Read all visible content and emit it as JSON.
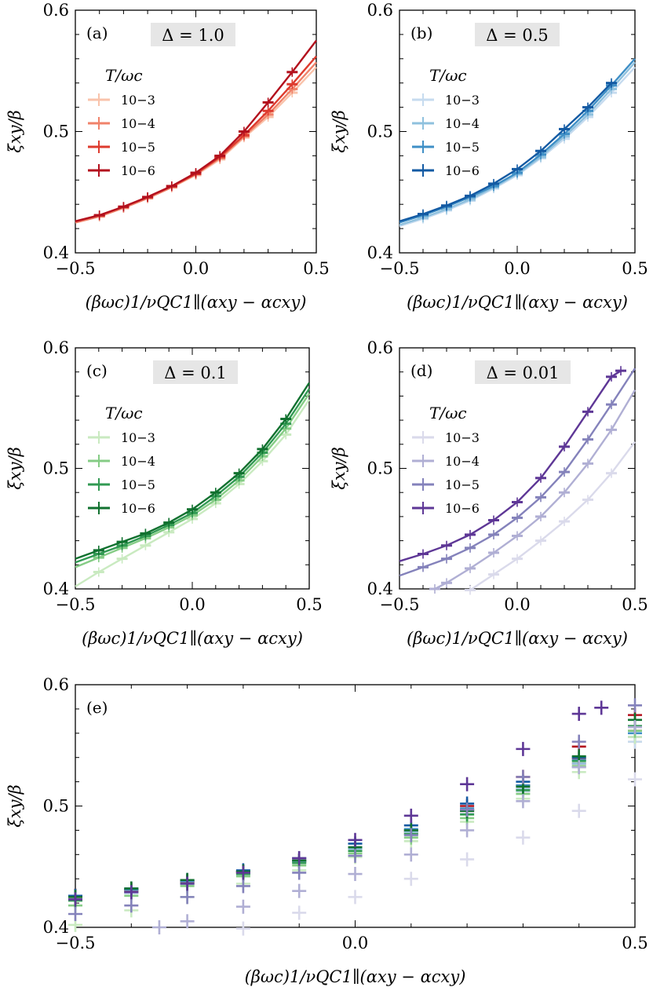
{
  "colors": {
    "a": [
      "#f9c3ab",
      "#f0826a",
      "#de3b2e",
      "#b3101d"
    ],
    "b": [
      "#c6dbef",
      "#8fc1de",
      "#3f8fc6",
      "#135aa3"
    ],
    "c": [
      "#c9eac0",
      "#85cc85",
      "#329a53",
      "#10712f"
    ],
    "d": [
      "#dadaeb",
      "#b0afd4",
      "#8482bb",
      "#5e3796"
    ]
  },
  "axes": {
    "xlabel": "(βωc)1/νQC1∥(αxy − αcxy)",
    "ylabel": "ξxy/β",
    "xticks": [
      "−0.5",
      "0.0",
      "0.5"
    ],
    "yticks": [
      "0.4",
      "0.5",
      "0.6"
    ]
  },
  "legend": {
    "title": "T/ωc",
    "entries": [
      "10−3",
      "10−4",
      "10−5",
      "10−6"
    ]
  },
  "panels": [
    {
      "label": "(a)",
      "delta": "Δ = 1.0"
    },
    {
      "label": "(b)",
      "delta": "Δ = 0.5"
    },
    {
      "label": "(c)",
      "delta": "Δ = 0.1"
    },
    {
      "label": "(d)",
      "delta": "Δ = 0.01"
    },
    {
      "label": "(e)",
      "delta": ""
    }
  ],
  "chart_data": [
    {
      "type": "line",
      "panel": "a",
      "title": "Δ = 1.0",
      "xlabel": "(βωc)^(1/νQC1∥)(αxy − αc_xy)",
      "ylabel": "ξxy/β",
      "xlim": [
        -0.5,
        0.5
      ],
      "ylim": [
        0.4,
        0.6
      ],
      "legend_title": "T/ωc",
      "series": [
        {
          "name": "10^-3",
          "x": [
            -0.5,
            -0.4,
            -0.3,
            -0.2,
            -0.1,
            0.0,
            0.1,
            0.2,
            0.3,
            0.4,
            0.5
          ],
          "y": [
            0.425,
            0.43,
            0.437,
            0.445,
            0.454,
            0.464,
            0.477,
            0.495,
            0.512,
            0.532,
            0.553
          ]
        },
        {
          "name": "10^-4",
          "x": [
            -0.5,
            -0.4,
            -0.3,
            -0.2,
            -0.1,
            0.0,
            0.1,
            0.2,
            0.3,
            0.4,
            0.5
          ],
          "y": [
            0.425,
            0.43,
            0.437,
            0.445,
            0.454,
            0.465,
            0.478,
            0.496,
            0.514,
            0.535,
            0.557
          ]
        },
        {
          "name": "10^-5",
          "x": [
            -0.5,
            -0.4,
            -0.3,
            -0.2,
            -0.1,
            0.0,
            0.1,
            0.2,
            0.3,
            0.4,
            0.5
          ],
          "y": [
            0.426,
            0.431,
            0.438,
            0.446,
            0.455,
            0.465,
            0.479,
            0.497,
            0.517,
            0.539,
            0.562
          ]
        },
        {
          "name": "10^-6",
          "x": [
            -0.5,
            -0.4,
            -0.3,
            -0.2,
            -0.1,
            0.0,
            0.1,
            0.2,
            0.3,
            0.4,
            0.5
          ],
          "y": [
            0.426,
            0.431,
            0.438,
            0.446,
            0.455,
            0.466,
            0.48,
            0.5,
            0.524,
            0.549,
            0.575
          ]
        }
      ]
    },
    {
      "type": "line",
      "panel": "b",
      "title": "Δ = 0.5",
      "xlabel": "(βωc)^(1/νQC1∥)(αxy − αc_xy)",
      "ylabel": "ξxy/β",
      "xlim": [
        -0.5,
        0.5
      ],
      "ylim": [
        0.4,
        0.6
      ],
      "legend_title": "T/ωc",
      "series": [
        {
          "name": "10^-3",
          "x": [
            -0.5,
            -0.4,
            -0.3,
            -0.2,
            -0.1,
            0.0,
            0.1,
            0.2,
            0.3,
            0.4,
            0.5
          ],
          "y": [
            0.422,
            0.428,
            0.435,
            0.443,
            0.453,
            0.464,
            0.478,
            0.494,
            0.512,
            0.532,
            0.553
          ]
        },
        {
          "name": "10^-4",
          "x": [
            -0.5,
            -0.4,
            -0.3,
            -0.2,
            -0.1,
            0.0,
            0.1,
            0.2,
            0.3,
            0.4,
            0.5
          ],
          "y": [
            0.423,
            0.429,
            0.436,
            0.444,
            0.454,
            0.465,
            0.479,
            0.496,
            0.514,
            0.535,
            0.557
          ]
        },
        {
          "name": "10^-5",
          "x": [
            -0.5,
            -0.4,
            -0.3,
            -0.2,
            -0.1,
            0.0,
            0.1,
            0.2,
            0.3,
            0.4,
            0.5
          ],
          "y": [
            0.425,
            0.431,
            0.438,
            0.446,
            0.455,
            0.466,
            0.481,
            0.498,
            0.517,
            0.538,
            0.56
          ]
        },
        {
          "name": "10^-6",
          "x": [
            -0.5,
            -0.4,
            -0.3,
            -0.2,
            -0.1,
            0.0,
            0.1,
            0.2,
            0.3,
            0.4
          ],
          "y": [
            0.426,
            0.432,
            0.439,
            0.447,
            0.457,
            0.469,
            0.484,
            0.502,
            0.52,
            0.54
          ]
        }
      ]
    },
    {
      "type": "line",
      "panel": "c",
      "title": "Δ = 0.1",
      "xlabel": "(βωc)^(1/νQC1∥)(αxy − αc_xy)",
      "ylabel": "ξxy/β",
      "xlim": [
        -0.5,
        0.5
      ],
      "ylim": [
        0.4,
        0.6
      ],
      "legend_title": "T/ωc",
      "series": [
        {
          "name": "10^-3",
          "x": [
            -0.5,
            -0.4,
            -0.3,
            -0.2,
            -0.1,
            0.0,
            0.1,
            0.2,
            0.3,
            0.4,
            0.5
          ],
          "y": [
            0.402,
            0.414,
            0.425,
            0.436,
            0.447,
            0.458,
            0.471,
            0.487,
            0.506,
            0.528,
            0.557
          ]
        },
        {
          "name": "10^-4",
          "x": [
            -0.5,
            -0.4,
            -0.3,
            -0.2,
            -0.1,
            0.0,
            0.1,
            0.2,
            0.3,
            0.4,
            0.5
          ],
          "y": [
            0.418,
            0.426,
            0.434,
            0.442,
            0.451,
            0.461,
            0.474,
            0.49,
            0.51,
            0.533,
            0.562
          ]
        },
        {
          "name": "10^-5",
          "x": [
            -0.5,
            -0.4,
            -0.3,
            -0.2,
            -0.1,
            0.0,
            0.1,
            0.2,
            0.3,
            0.4,
            0.5
          ],
          "y": [
            0.422,
            0.429,
            0.436,
            0.444,
            0.453,
            0.463,
            0.477,
            0.493,
            0.513,
            0.537,
            0.566
          ]
        },
        {
          "name": "10^-6",
          "x": [
            -0.5,
            -0.4,
            -0.3,
            -0.2,
            -0.1,
            0.0,
            0.1,
            0.2,
            0.3,
            0.4,
            0.5
          ],
          "y": [
            0.425,
            0.432,
            0.439,
            0.446,
            0.455,
            0.466,
            0.48,
            0.496,
            0.516,
            0.541,
            0.571
          ]
        }
      ]
    },
    {
      "type": "line",
      "panel": "d",
      "title": "Δ = 0.01",
      "xlabel": "(βωc)^(1/νQC1∥)(αxy − αc_xy)",
      "ylabel": "ξxy/β",
      "xlim": [
        -0.5,
        0.5
      ],
      "ylim": [
        0.4,
        0.6
      ],
      "legend_title": "T/ωc",
      "series": [
        {
          "name": "10^-3",
          "x": [
            -0.2,
            -0.1,
            0.0,
            0.1,
            0.2,
            0.3,
            0.4,
            0.5
          ],
          "y": [
            0.399,
            0.412,
            0.425,
            0.44,
            0.456,
            0.474,
            0.496,
            0.522
          ]
        },
        {
          "name": "10^-4",
          "x": [
            -0.35,
            -0.3,
            -0.2,
            -0.1,
            0.0,
            0.1,
            0.2,
            0.3,
            0.4,
            0.5
          ],
          "y": [
            0.4,
            0.405,
            0.417,
            0.43,
            0.444,
            0.46,
            0.48,
            0.504,
            0.532,
            0.565
          ]
        },
        {
          "name": "10^-5",
          "x": [
            -0.5,
            -0.4,
            -0.3,
            -0.2,
            -0.1,
            0.0,
            0.1,
            0.2,
            0.3,
            0.4,
            0.5
          ],
          "y": [
            0.411,
            0.418,
            0.425,
            0.434,
            0.445,
            0.459,
            0.476,
            0.497,
            0.524,
            0.553,
            0.583
          ]
        },
        {
          "name": "10^-6",
          "x": [
            -0.5,
            -0.4,
            -0.3,
            -0.2,
            -0.1,
            0.0,
            0.1,
            0.2,
            0.3,
            0.4,
            0.44
          ],
          "y": [
            0.423,
            0.429,
            0.436,
            0.445,
            0.457,
            0.472,
            0.492,
            0.518,
            0.547,
            0.576,
            0.581
          ]
        }
      ]
    },
    {
      "type": "scatter",
      "panel": "e",
      "title": "",
      "xlabel": "(βωc)^(1/νQC1∥)(αxy − αc_xy)",
      "ylabel": "ξxy/β",
      "xlim": [
        -0.5,
        0.5
      ],
      "ylim": [
        0.4,
        0.6
      ],
      "note": "All 16 series from panels (a)-(d) overlaid as error-bar markers only"
    }
  ]
}
